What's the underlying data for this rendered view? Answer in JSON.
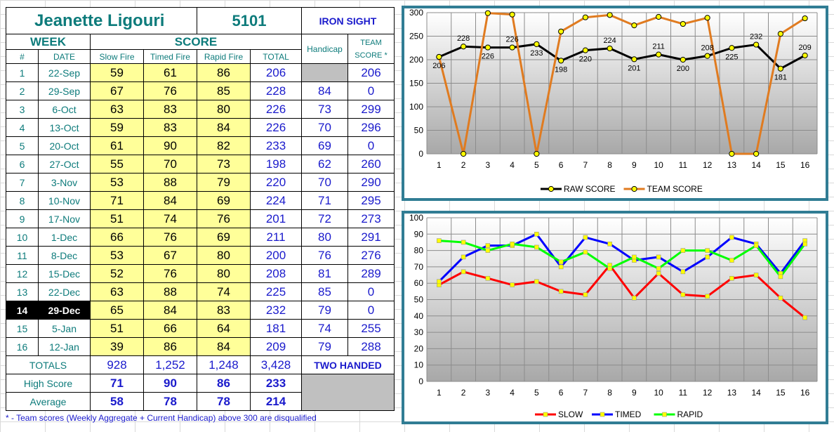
{
  "shooter": {
    "name": "Jeanette Ligouri",
    "id": "5101",
    "team": "IRON SIGHT"
  },
  "headers": {
    "week": "WEEK",
    "score": "SCORE",
    "num": "#",
    "date": "DATE",
    "slow": "Slow Fire",
    "timed": "Timed Fire",
    "rapid": "Rapid Fire",
    "total": "TOTAL",
    "handicap": "Handicap",
    "team_score_1": "TEAM",
    "team_score_2": "SCORE *"
  },
  "rows": [
    {
      "week": "1",
      "date": "22-Sep",
      "slow": "59",
      "timed": "61",
      "rapid": "86",
      "total": "206",
      "handicap": "",
      "team": "206"
    },
    {
      "week": "2",
      "date": "29-Sep",
      "slow": "67",
      "timed": "76",
      "rapid": "85",
      "total": "228",
      "handicap": "84",
      "team": "0"
    },
    {
      "week": "3",
      "date": "6-Oct",
      "slow": "63",
      "timed": "83",
      "rapid": "80",
      "total": "226",
      "handicap": "73",
      "team": "299"
    },
    {
      "week": "4",
      "date": "13-Oct",
      "slow": "59",
      "timed": "83",
      "rapid": "84",
      "total": "226",
      "handicap": "70",
      "team": "296"
    },
    {
      "week": "5",
      "date": "20-Oct",
      "slow": "61",
      "timed": "90",
      "rapid": "82",
      "total": "233",
      "handicap": "69",
      "team": "0"
    },
    {
      "week": "6",
      "date": "27-Oct",
      "slow": "55",
      "timed": "70",
      "rapid": "73",
      "total": "198",
      "handicap": "62",
      "team": "260"
    },
    {
      "week": "7",
      "date": "3-Nov",
      "slow": "53",
      "timed": "88",
      "rapid": "79",
      "total": "220",
      "handicap": "70",
      "team": "290"
    },
    {
      "week": "8",
      "date": "10-Nov",
      "slow": "71",
      "timed": "84",
      "rapid": "69",
      "total": "224",
      "handicap": "71",
      "team": "295"
    },
    {
      "week": "9",
      "date": "17-Nov",
      "slow": "51",
      "timed": "74",
      "rapid": "76",
      "total": "201",
      "handicap": "72",
      "team": "273"
    },
    {
      "week": "10",
      "date": "1-Dec",
      "slow": "66",
      "timed": "76",
      "rapid": "69",
      "total": "211",
      "handicap": "80",
      "team": "291"
    },
    {
      "week": "11",
      "date": "8-Dec",
      "slow": "53",
      "timed": "67",
      "rapid": "80",
      "total": "200",
      "handicap": "76",
      "team": "276"
    },
    {
      "week": "12",
      "date": "15-Dec",
      "slow": "52",
      "timed": "76",
      "rapid": "80",
      "total": "208",
      "handicap": "81",
      "team": "289"
    },
    {
      "week": "13",
      "date": "22-Dec",
      "slow": "63",
      "timed": "88",
      "rapid": "74",
      "total": "225",
      "handicap": "85",
      "team": "0"
    },
    {
      "week": "14",
      "date": "29-Dec",
      "slow": "65",
      "timed": "84",
      "rapid": "83",
      "total": "232",
      "handicap": "79",
      "team": "0"
    },
    {
      "week": "15",
      "date": "5-Jan",
      "slow": "51",
      "timed": "66",
      "rapid": "64",
      "total": "181",
      "handicap": "74",
      "team": "255"
    },
    {
      "week": "16",
      "date": "12-Jan",
      "slow": "39",
      "timed": "86",
      "rapid": "84",
      "total": "209",
      "handicap": "79",
      "team": "288"
    }
  ],
  "current_week_index": 13,
  "summary": {
    "totals_label": "TOTALS",
    "totals": [
      "928",
      "1,252",
      "1,248",
      "3,428"
    ],
    "two_handed": "TWO HANDED",
    "high_label": "High Score",
    "high": [
      "71",
      "90",
      "86",
      "233"
    ],
    "avg_label": "Average",
    "avg": [
      "58",
      "78",
      "78",
      "214"
    ]
  },
  "footnote": "* - Team scores (Weekly Aggregate + Current Handicap) above 300 are disqualified",
  "colors": {
    "teal": "#0d7b7b",
    "blue": "#1a1acc",
    "yellow": "#ffff99",
    "chart_frame": "#317d94",
    "raw": "#000000",
    "team": "#e07b20",
    "slow": "#ff0000",
    "timed": "#0000ff",
    "rapid": "#00ff00"
  },
  "chart_data": [
    {
      "type": "line",
      "x": [
        1,
        2,
        3,
        4,
        5,
        6,
        7,
        8,
        9,
        10,
        11,
        12,
        13,
        14,
        15,
        16
      ],
      "ylim": [
        0,
        300
      ],
      "yticks": [
        0,
        50,
        100,
        150,
        200,
        250,
        300
      ],
      "grid": true,
      "legend": "bottom",
      "series": [
        {
          "name": "RAW SCORE",
          "color": "#000000",
          "values": [
            206,
            228,
            226,
            226,
            233,
            198,
            220,
            224,
            201,
            211,
            200,
            208,
            225,
            232,
            181,
            209
          ],
          "labels": true
        },
        {
          "name": "TEAM SCORE",
          "color": "#e07b20",
          "values": [
            206,
            0,
            299,
            296,
            0,
            260,
            290,
            295,
            273,
            291,
            276,
            289,
            0,
            0,
            255,
            288
          ],
          "labels": false
        }
      ]
    },
    {
      "type": "line",
      "x": [
        1,
        2,
        3,
        4,
        5,
        6,
        7,
        8,
        9,
        10,
        11,
        12,
        13,
        14,
        15,
        16
      ],
      "ylim": [
        0,
        100
      ],
      "yticks": [
        0,
        10,
        20,
        30,
        40,
        50,
        60,
        70,
        80,
        90,
        100
      ],
      "grid": true,
      "legend": "bottom",
      "series": [
        {
          "name": "SLOW",
          "color": "#ff0000",
          "values": [
            59,
            67,
            63,
            59,
            61,
            55,
            53,
            71,
            51,
            66,
            53,
            52,
            63,
            65,
            51,
            39
          ]
        },
        {
          "name": "TIMED",
          "color": "#0000ff",
          "values": [
            61,
            76,
            83,
            83,
            90,
            70,
            88,
            84,
            74,
            76,
            67,
            76,
            88,
            84,
            66,
            86
          ]
        },
        {
          "name": "RAPID",
          "color": "#00ff00",
          "values": [
            86,
            85,
            80,
            84,
            82,
            73,
            79,
            69,
            76,
            69,
            80,
            80,
            74,
            83,
            64,
            84
          ]
        }
      ]
    }
  ]
}
